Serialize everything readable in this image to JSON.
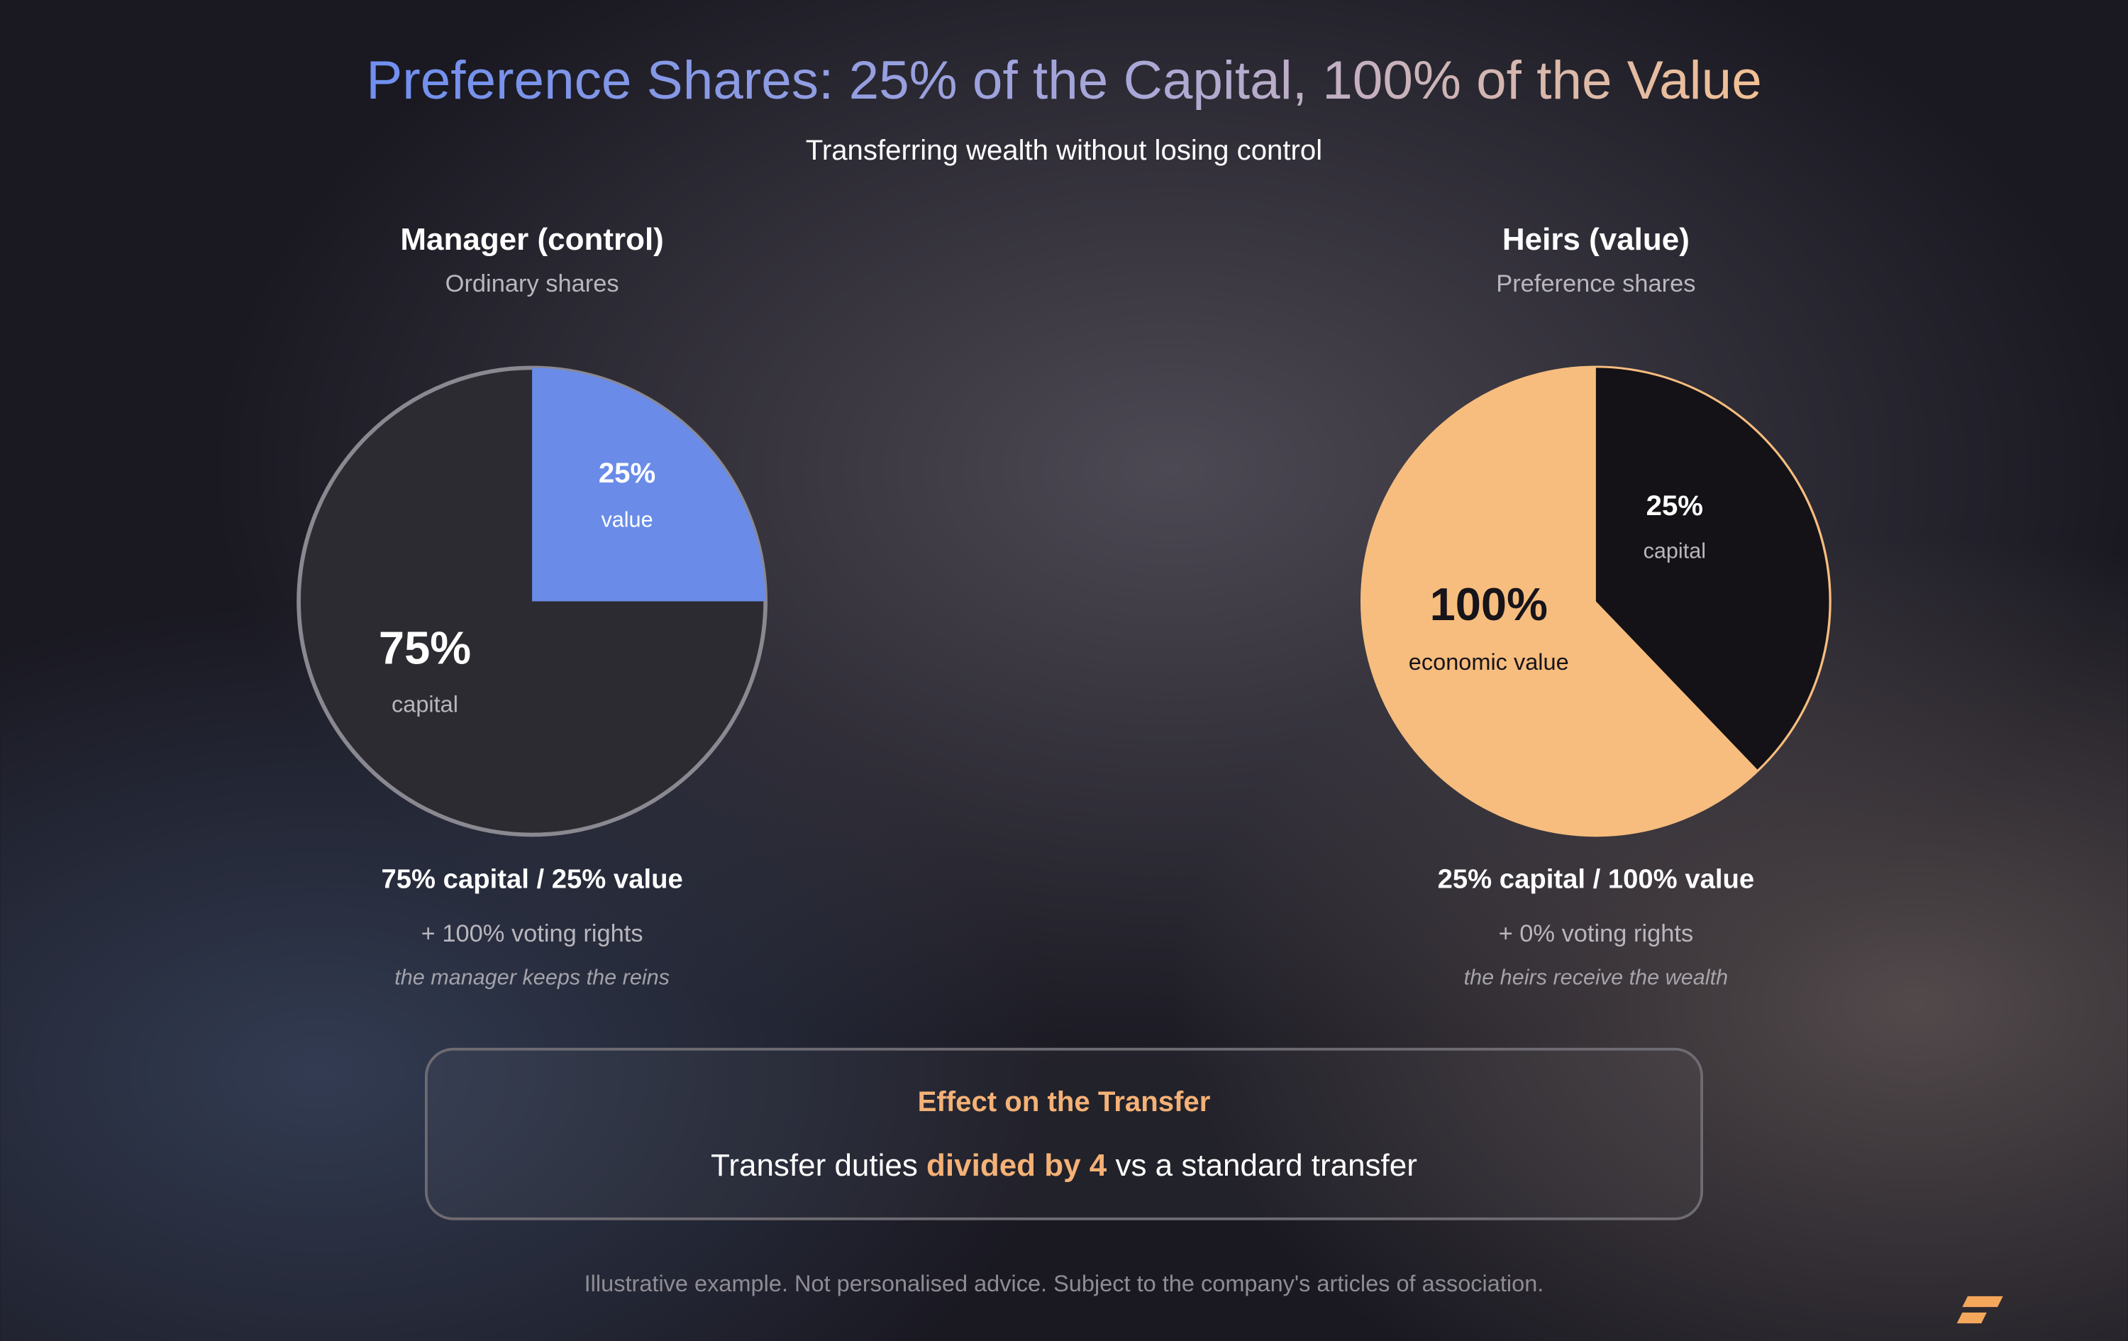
{
  "header": {
    "title": "Preference Shares: 25% of the Capital, 100% of the Value",
    "subtitle": "Transferring wealth without losing control"
  },
  "panels": [
    {
      "heading": "Manager (control)",
      "subheading": "Ordinary shares",
      "slices": [
        {
          "value": "25%",
          "label": "value"
        },
        {
          "value": "75%",
          "label": "capital"
        }
      ],
      "summary": "75% capital / 25% value",
      "voting": "+ 100% voting rights",
      "note": "the manager keeps the reins"
    },
    {
      "heading": "Heirs (value)",
      "subheading": "Preference shares",
      "slices": [
        {
          "value": "25%",
          "label": "capital"
        },
        {
          "value": "100%",
          "label": "economic value"
        }
      ],
      "summary": "25% capital / 100% value",
      "voting": "+ 0% voting rights",
      "note": "the heirs receive the wealth"
    }
  ],
  "callout": {
    "title": "Effect on the Transfer",
    "text": {
      "before": "Transfer duties ",
      "highlight": "divided by 4",
      "after": " vs a standard transfer"
    }
  },
  "footer": "Illustrative example. Not personalised advice. Subject to the company's articles of association."
}
